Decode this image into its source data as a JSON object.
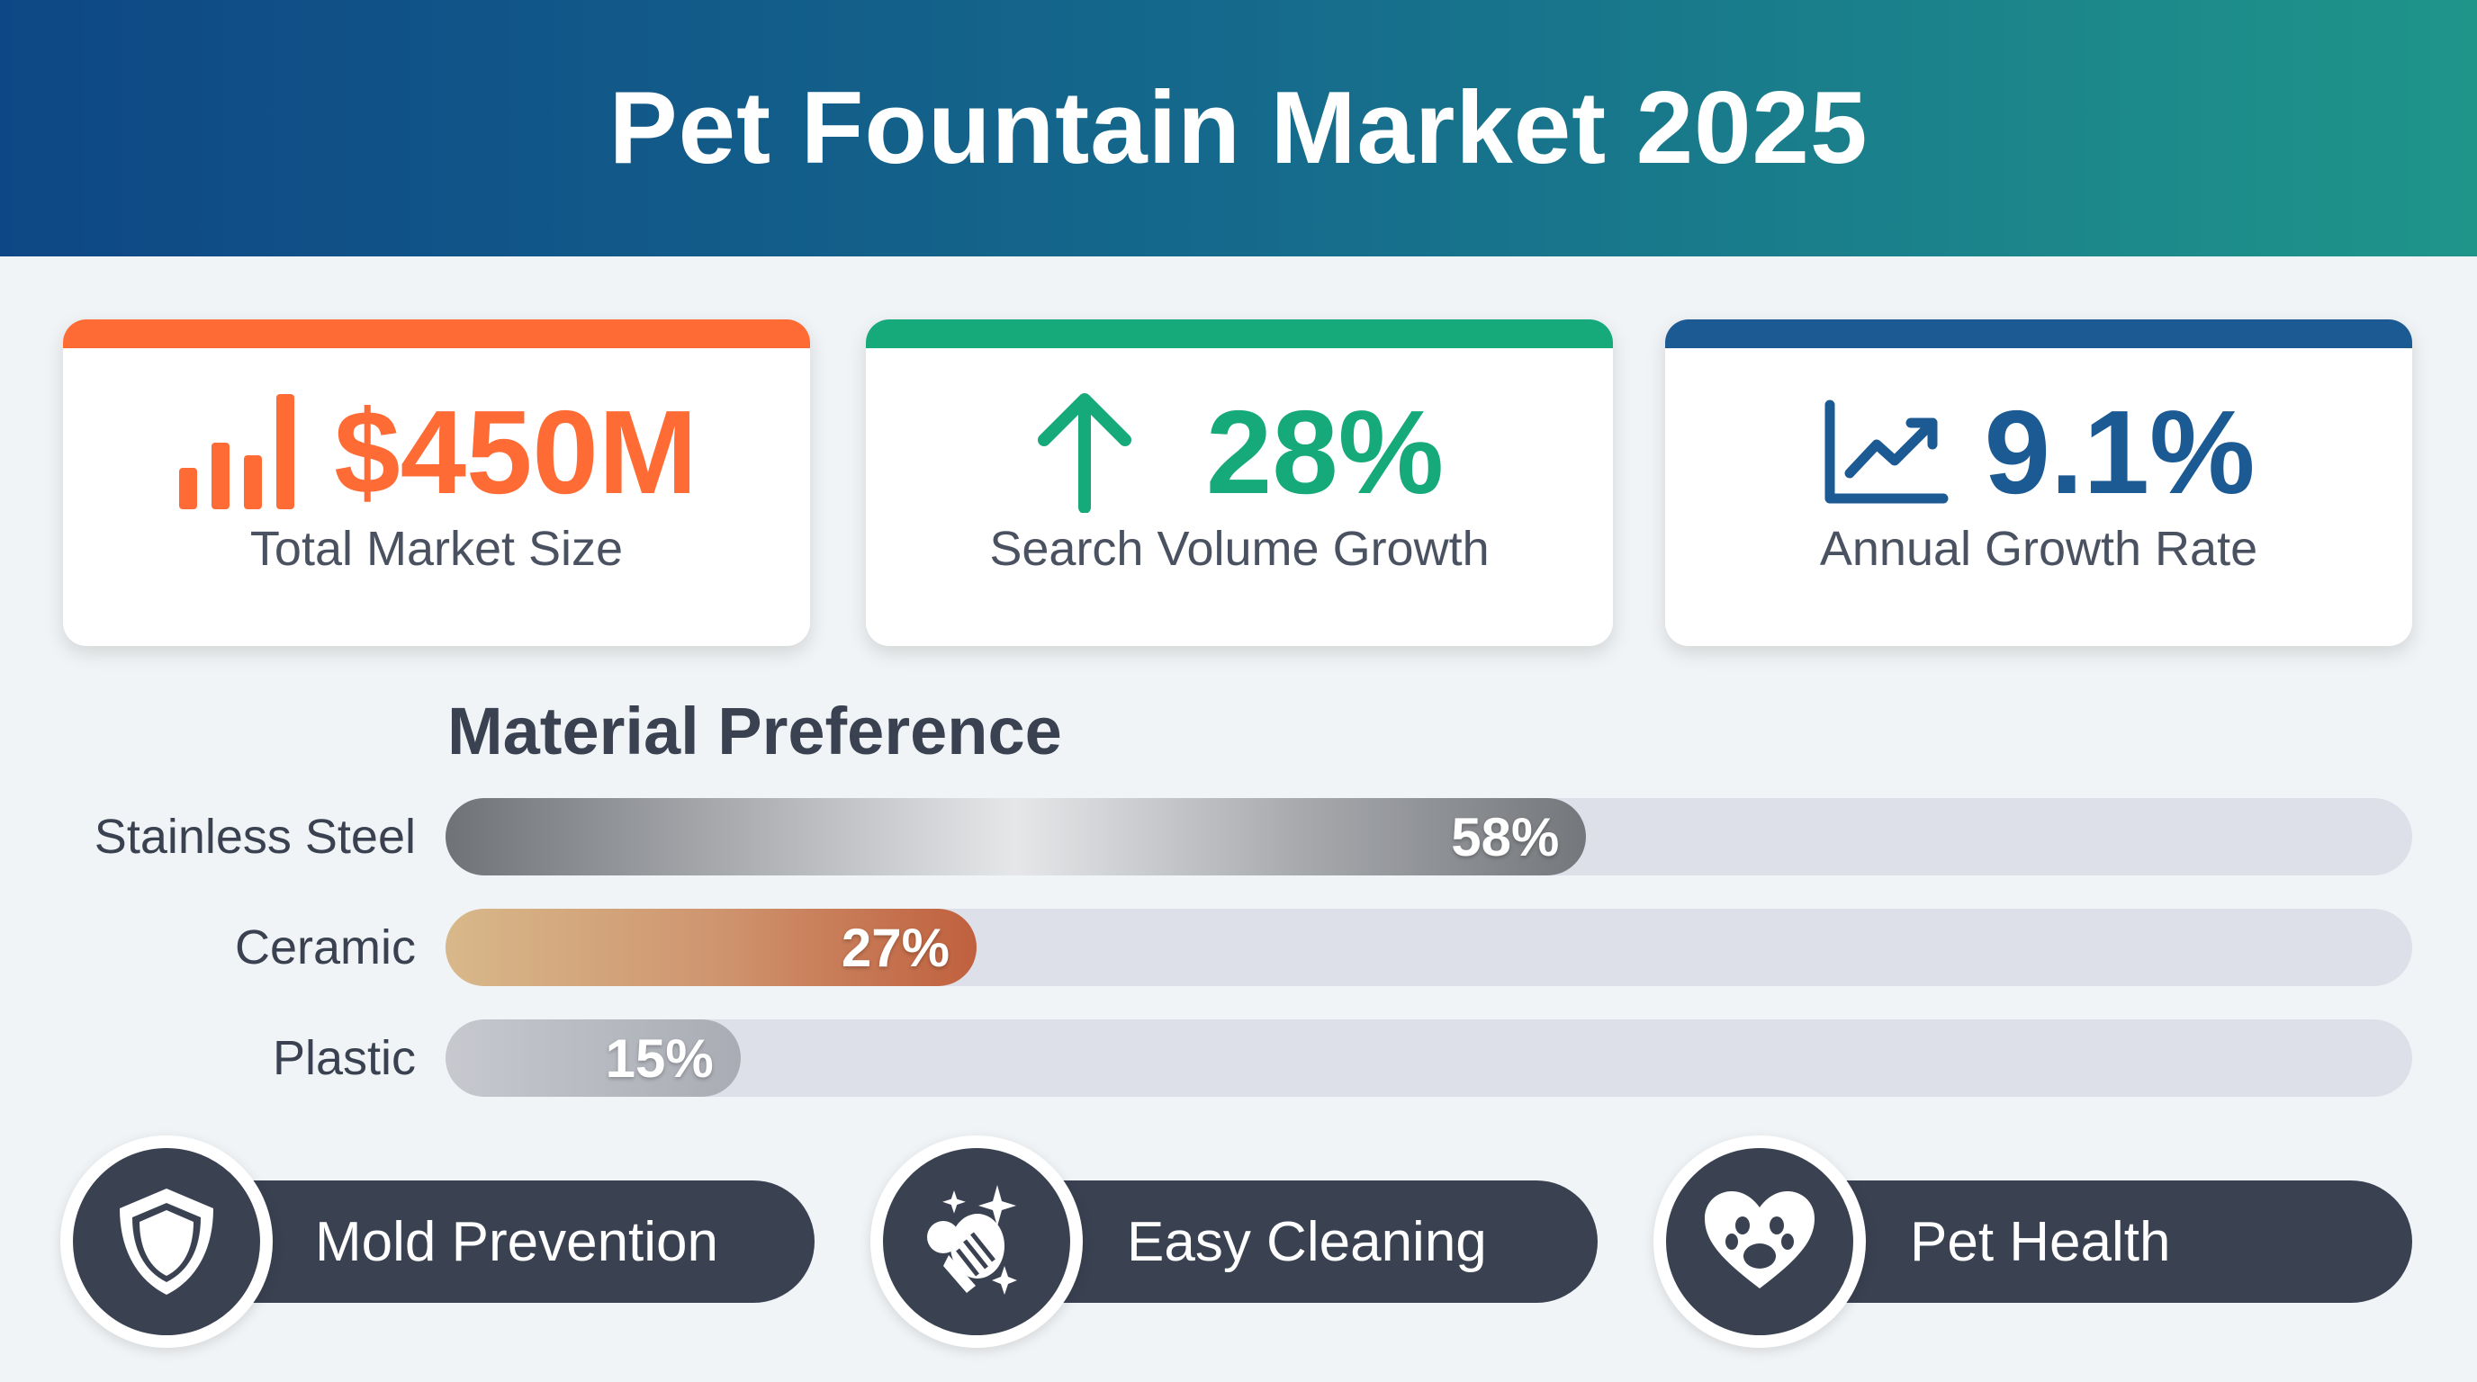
{
  "header": {
    "title": "Pet Fountain Market 2025"
  },
  "colors": {
    "orange": "#ff6b35",
    "green": "#16a97a",
    "blue": "#1c5a94",
    "dark": "#3a4252"
  },
  "stats": [
    {
      "value": "$450M",
      "label": "Total Market Size",
      "icon": "bar-chart-icon",
      "color": "#ff6b35"
    },
    {
      "value": "28%",
      "label": "Search Volume Growth",
      "icon": "arrow-up-icon",
      "color": "#16a97a"
    },
    {
      "value": "9.1%",
      "label": "Annual Growth Rate",
      "icon": "line-chart-icon",
      "color": "#1c5a94"
    }
  ],
  "material": {
    "title": "Material Preference",
    "items": [
      {
        "label": "Stainless Steel",
        "value": 58,
        "text": "58%"
      },
      {
        "label": "Ceramic",
        "value": 27,
        "text": "27%"
      },
      {
        "label": "Plastic",
        "value": 15,
        "text": "15%"
      }
    ]
  },
  "features": [
    {
      "label": "Mold Prevention",
      "icon": "shield-icon"
    },
    {
      "label": "Easy Cleaning",
      "icon": "cleaning-hand-icon"
    },
    {
      "label": "Pet Health",
      "icon": "heart-paw-icon"
    }
  ]
}
